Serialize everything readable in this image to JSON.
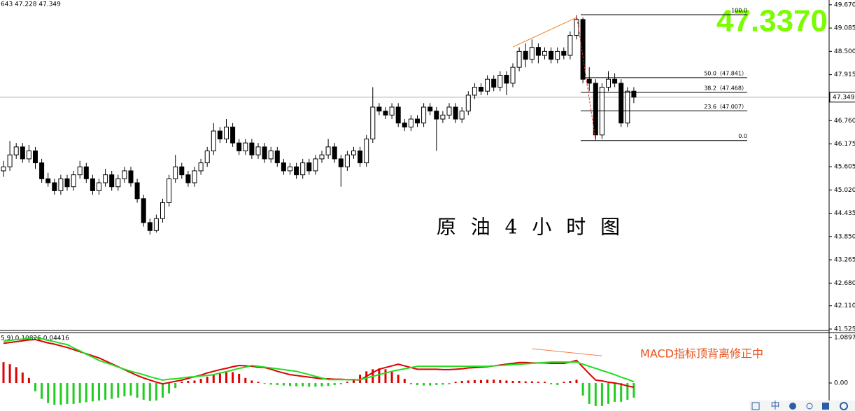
{
  "chart_data": {
    "type": "candlestick",
    "title": "原 油 4 小 时 图",
    "header_text": "643 47.228 47.349",
    "price_display": "47.3370",
    "last_price": 47.349,
    "up_fill": "#ffffff",
    "down_fill": "#000000",
    "ylim": [
      41.49,
      49.79
    ],
    "yticks": [
      {
        "value": 49.67,
        "label": "49.670"
      },
      {
        "value": 49.085,
        "label": "49.085"
      },
      {
        "value": 48.5,
        "label": "48.500"
      },
      {
        "value": 47.915,
        "label": "47.915"
      },
      {
        "value": 46.76,
        "label": "46.760"
      },
      {
        "value": 46.175,
        "label": "46.175"
      },
      {
        "value": 45.605,
        "label": "45.605"
      },
      {
        "value": 45.02,
        "label": "45.020"
      },
      {
        "value": 44.435,
        "label": "44.435"
      },
      {
        "value": 43.85,
        "label": "43.850"
      },
      {
        "value": 43.265,
        "label": "43.265"
      },
      {
        "value": 42.68,
        "label": "42.680"
      },
      {
        "value": 42.11,
        "label": "42.110"
      },
      {
        "value": 41.525,
        "label": "41.525"
      }
    ],
    "candles": [
      [
        45.5,
        45.75,
        45.35,
        45.6
      ],
      [
        45.6,
        46.25,
        45.5,
        45.9
      ],
      [
        45.9,
        46.2,
        45.8,
        46.1
      ],
      [
        46.1,
        46.2,
        45.7,
        45.8
      ],
      [
        45.8,
        46.15,
        45.7,
        46.0
      ],
      [
        46.0,
        46.1,
        45.55,
        45.7
      ],
      [
        45.7,
        45.8,
        45.2,
        45.3
      ],
      [
        45.3,
        45.45,
        45.1,
        45.2
      ],
      [
        45.2,
        45.3,
        44.9,
        45.0
      ],
      [
        45.0,
        45.4,
        44.9,
        45.3
      ],
      [
        45.3,
        45.4,
        45.0,
        45.1
      ],
      [
        45.1,
        45.5,
        45.0,
        45.4
      ],
      [
        45.4,
        45.75,
        45.3,
        45.6
      ],
      [
        45.6,
        45.7,
        45.2,
        45.3
      ],
      [
        45.3,
        45.4,
        44.9,
        45.0
      ],
      [
        45.0,
        45.3,
        44.9,
        45.2
      ],
      [
        45.2,
        45.55,
        45.1,
        45.4
      ],
      [
        45.4,
        45.5,
        45.0,
        45.1
      ],
      [
        45.1,
        45.4,
        45.0,
        45.3
      ],
      [
        45.3,
        45.6,
        45.2,
        45.5
      ],
      [
        45.5,
        45.6,
        45.1,
        45.2
      ],
      [
        45.2,
        45.3,
        44.7,
        44.8
      ],
      [
        44.8,
        44.9,
        44.1,
        44.2
      ],
      [
        44.2,
        44.3,
        43.9,
        44.0
      ],
      [
        44.0,
        44.4,
        43.95,
        44.3
      ],
      [
        44.3,
        44.8,
        44.2,
        44.7
      ],
      [
        44.7,
        45.4,
        44.6,
        45.3
      ],
      [
        45.3,
        45.9,
        45.2,
        45.6
      ],
      [
        45.6,
        45.7,
        45.3,
        45.4
      ],
      [
        45.4,
        45.5,
        45.1,
        45.2
      ],
      [
        45.2,
        45.6,
        45.1,
        45.5
      ],
      [
        45.5,
        45.8,
        45.4,
        45.7
      ],
      [
        45.7,
        46.1,
        45.6,
        46.0
      ],
      [
        46.0,
        46.7,
        45.9,
        46.5
      ],
      [
        46.5,
        46.6,
        46.2,
        46.3
      ],
      [
        46.3,
        46.8,
        46.2,
        46.6
      ],
      [
        46.6,
        46.7,
        46.1,
        46.2
      ],
      [
        46.2,
        46.3,
        45.9,
        46.0
      ],
      [
        46.0,
        46.3,
        45.9,
        46.2
      ],
      [
        46.2,
        46.3,
        45.8,
        45.9
      ],
      [
        45.9,
        46.2,
        45.8,
        46.1
      ],
      [
        46.1,
        46.2,
        45.7,
        45.8
      ],
      [
        45.8,
        46.1,
        45.7,
        46.0
      ],
      [
        46.0,
        46.1,
        45.6,
        45.7
      ],
      [
        45.7,
        45.8,
        45.4,
        45.5
      ],
      [
        45.5,
        45.7,
        45.4,
        45.6
      ],
      [
        45.6,
        45.7,
        45.3,
        45.4
      ],
      [
        45.4,
        45.8,
        45.3,
        45.7
      ],
      [
        45.7,
        45.8,
        45.4,
        45.5
      ],
      [
        45.5,
        45.9,
        45.4,
        45.8
      ],
      [
        45.8,
        46.0,
        45.7,
        45.9
      ],
      [
        45.9,
        46.3,
        45.8,
        46.1
      ],
      [
        46.1,
        46.2,
        45.7,
        45.8
      ],
      [
        45.8,
        45.9,
        45.1,
        45.6
      ],
      [
        45.6,
        46.0,
        45.5,
        45.9
      ],
      [
        45.9,
        46.1,
        45.8,
        46.0
      ],
      [
        46.0,
        46.1,
        45.6,
        45.7
      ],
      [
        45.7,
        46.4,
        45.6,
        46.3
      ],
      [
        46.3,
        47.6,
        46.2,
        47.1
      ],
      [
        47.1,
        47.2,
        46.9,
        47.0
      ],
      [
        47.0,
        47.1,
        46.8,
        46.9
      ],
      [
        46.9,
        47.2,
        46.8,
        47.1
      ],
      [
        47.1,
        47.2,
        46.6,
        46.7
      ],
      [
        46.7,
        46.8,
        46.5,
        46.6
      ],
      [
        46.6,
        46.9,
        46.5,
        46.8
      ],
      [
        46.8,
        46.9,
        46.6,
        46.7
      ],
      [
        46.7,
        47.2,
        46.6,
        47.1
      ],
      [
        47.1,
        47.2,
        46.9,
        47.0
      ],
      [
        47.0,
        47.1,
        46.0,
        46.8
      ],
      [
        46.8,
        47.0,
        46.7,
        46.9
      ],
      [
        46.9,
        47.2,
        46.8,
        47.1
      ],
      [
        47.1,
        47.2,
        46.7,
        46.8
      ],
      [
        46.8,
        47.1,
        46.7,
        47.0
      ],
      [
        47.0,
        47.5,
        46.9,
        47.4
      ],
      [
        47.4,
        47.7,
        47.3,
        47.6
      ],
      [
        47.6,
        47.7,
        47.4,
        47.5
      ],
      [
        47.5,
        47.9,
        47.4,
        47.8
      ],
      [
        47.8,
        47.9,
        47.5,
        47.6
      ],
      [
        47.6,
        48.0,
        47.5,
        47.9
      ],
      [
        47.9,
        48.0,
        47.4,
        47.7
      ],
      [
        47.7,
        48.2,
        47.6,
        48.1
      ],
      [
        48.1,
        48.6,
        48.0,
        48.5
      ],
      [
        48.5,
        48.7,
        48.1,
        48.3
      ],
      [
        48.3,
        48.8,
        48.2,
        48.6
      ],
      [
        48.6,
        48.7,
        48.2,
        48.4
      ],
      [
        48.4,
        48.6,
        48.3,
        48.5
      ],
      [
        48.5,
        48.6,
        48.2,
        48.3
      ],
      [
        48.3,
        48.6,
        48.2,
        48.5
      ],
      [
        48.5,
        48.6,
        48.3,
        48.4
      ],
      [
        48.4,
        49.0,
        48.3,
        48.9
      ],
      [
        48.9,
        49.4,
        48.8,
        49.3
      ],
      [
        49.3,
        49.35,
        47.7,
        47.8
      ],
      [
        47.8,
        48.1,
        47.5,
        47.7
      ],
      [
        47.7,
        47.8,
        46.25,
        46.4
      ],
      [
        46.4,
        47.7,
        46.3,
        47.6
      ],
      [
        47.6,
        48.0,
        47.5,
        47.8
      ],
      [
        47.8,
        47.95,
        47.6,
        47.7
      ],
      [
        47.7,
        47.8,
        46.6,
        46.7
      ],
      [
        46.7,
        47.6,
        46.6,
        47.5
      ],
      [
        47.5,
        47.6,
        47.2,
        47.35
      ]
    ],
    "fib_levels": [
      {
        "label": "100.0",
        "price": 49.42
      },
      {
        "label": "50.0（47.841）",
        "price": 47.841
      },
      {
        "label": "38.2（47.468）",
        "price": 47.468
      },
      {
        "label": "23.6（47.007）",
        "price": 47.007
      },
      {
        "label": "0.0",
        "price": 46.26
      }
    ],
    "trendlines": [
      {
        "color": "#f08020",
        "dash": false,
        "x": [
          80,
          90
        ],
        "y": [
          48.61,
          49.35
        ]
      },
      {
        "color": "#e03020",
        "dash": true,
        "x": [
          90,
          93
        ],
        "y": [
          49.42,
          46.26
        ]
      }
    ],
    "indicator": {
      "label": "5,9) 0.10826 0.04416",
      "note": "MACD指标顶背离修正中",
      "y2lim": [
        -0.67,
        1.207
      ],
      "y2ticks": [
        1.0897,
        {
          "value": 0,
          "label": "0.00"
        }
      ],
      "up_color": "#e00000",
      "down_color": "#22cc22",
      "histogram": [
        0.5,
        0.45,
        0.38,
        0.25,
        0.12,
        -0.2,
        -0.38,
        -0.48,
        -0.52,
        -0.52,
        -0.5,
        -0.5,
        -0.48,
        -0.46,
        -0.44,
        -0.42,
        -0.4,
        -0.38,
        -0.35,
        -0.32,
        -0.3,
        -0.35,
        -0.4,
        -0.43,
        -0.42,
        -0.35,
        -0.25,
        -0.12,
        0.03,
        0.05,
        0.06,
        0.1,
        0.15,
        0.2,
        0.25,
        0.27,
        0.26,
        0.22,
        0.12,
        0.06,
        0.03,
        -0.02,
        -0.04,
        -0.05,
        -0.06,
        -0.07,
        -0.08,
        -0.08,
        -0.09,
        -0.09,
        -0.08,
        -0.07,
        -0.05,
        -0.03,
        0.03,
        0.1,
        0.2,
        0.28,
        0.33,
        0.35,
        0.33,
        0.28,
        0.2,
        0.1,
        -0.03,
        -0.05,
        -0.06,
        -0.06,
        -0.05,
        -0.04,
        -0.03,
        0.03,
        0.05,
        0.06,
        0.07,
        0.07,
        0.08,
        0.08,
        0.07,
        0.06,
        0.05,
        0.05,
        0.04,
        0.04,
        0.03,
        0.03,
        -0.03,
        -0.05,
        0.03,
        0.05,
        0.08,
        -0.3,
        -0.5,
        -0.55,
        -0.55,
        -0.5,
        -0.45,
        -0.45,
        -0.4,
        -0.35
      ],
      "series": [
        {
          "color": "#dd0000",
          "values": [
            0.95,
            0.97,
            0.99,
            1.01,
            1.03,
            1.04,
            1.0,
            0.96,
            0.93,
            0.89,
            0.85,
            0.8,
            0.75,
            0.7,
            0.65,
            0.6,
            0.53,
            0.46,
            0.39,
            0.32,
            0.25,
            0.18,
            0.12,
            0.07,
            0.02,
            -0.02,
            0.01,
            0.04,
            0.07,
            0.11,
            0.15,
            0.19,
            0.24,
            0.28,
            0.32,
            0.35,
            0.39,
            0.42,
            0.41,
            0.4,
            0.38,
            0.37,
            0.33,
            0.28,
            0.24,
            0.2,
            0.18,
            0.16,
            0.14,
            0.12,
            0.1,
            0.1,
            0.09,
            0.09,
            0.08,
            0.08,
            0.07,
            0.16,
            0.25,
            0.33,
            0.37,
            0.41,
            0.45,
            0.41,
            0.37,
            0.33,
            0.33,
            0.33,
            0.33,
            0.32,
            0.32,
            0.33,
            0.34,
            0.36,
            0.37,
            0.38,
            0.39,
            0.41,
            0.43,
            0.45,
            0.47,
            0.49,
            0.49,
            0.48,
            0.48,
            0.48,
            0.47,
            0.47,
            0.47,
            0.5,
            0.54,
            0.38,
            0.22,
            0.07,
            0.05,
            0.02,
            0.0,
            -0.03,
            -0.07,
            -0.1
          ]
        },
        {
          "color": "#22dd22",
          "values": [
            1.0,
            1.02,
            1.04,
            1.05,
            1.07,
            1.09,
            1.06,
            1.02,
            0.99,
            0.95,
            0.92,
            0.84,
            0.77,
            0.69,
            0.62,
            0.54,
            0.49,
            0.44,
            0.38,
            0.33,
            0.28,
            0.24,
            0.2,
            0.15,
            0.11,
            0.07,
            0.09,
            0.1,
            0.12,
            0.14,
            0.15,
            0.17,
            0.18,
            0.2,
            0.24,
            0.27,
            0.31,
            0.35,
            0.38,
            0.42,
            0.4,
            0.38,
            0.36,
            0.34,
            0.32,
            0.3,
            0.28,
            0.24,
            0.2,
            0.16,
            0.12,
            0.08,
            0.08,
            0.08,
            0.08,
            0.08,
            0.08,
            0.12,
            0.16,
            0.2,
            0.24,
            0.28,
            0.31,
            0.34,
            0.37,
            0.4,
            0.4,
            0.4,
            0.4,
            0.4,
            0.4,
            0.4,
            0.4,
            0.4,
            0.4,
            0.4,
            0.4,
            0.41,
            0.42,
            0.43,
            0.44,
            0.45,
            0.46,
            0.47,
            0.48,
            0.49,
            0.5,
            0.5,
            0.5,
            0.5,
            0.5,
            0.45,
            0.4,
            0.35,
            0.3,
            0.25,
            0.2,
            0.14,
            0.09,
            0.03
          ]
        }
      ],
      "trendline": {
        "color": "#f08050",
        "x": [
          83,
          94
        ],
        "y": [
          0.82,
          0.65
        ]
      }
    },
    "toolbar_label": "中"
  }
}
